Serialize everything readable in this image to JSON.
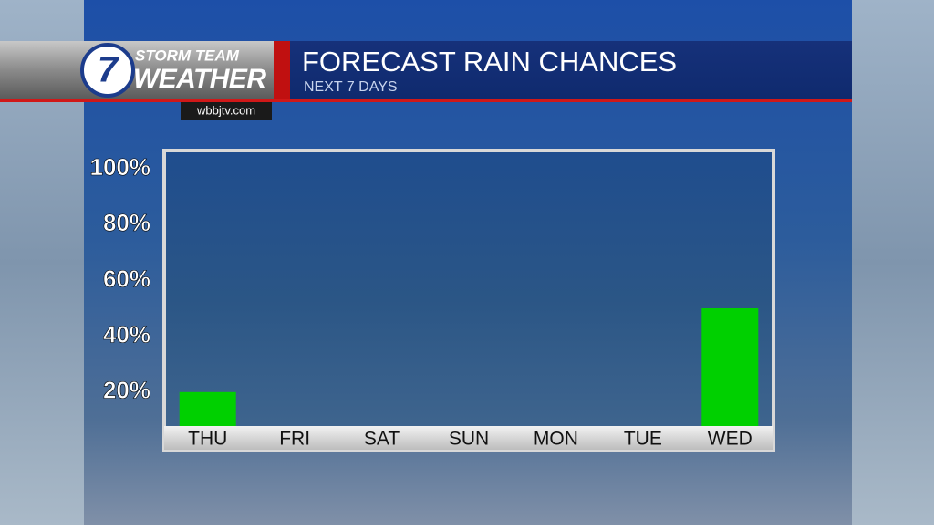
{
  "branding": {
    "logo_number": "7",
    "line1": "STORM TEAM",
    "line2": "WEATHER",
    "website": "wbbjtv.com"
  },
  "chart_data": {
    "type": "bar",
    "title": "FORECAST RAIN CHANCES",
    "subtitle": "NEXT 7 DAYS",
    "categories": [
      "THU",
      "FRI",
      "SAT",
      "SUN",
      "MON",
      "TUE",
      "WED"
    ],
    "values": [
      20,
      0,
      0,
      0,
      0,
      0,
      50
    ],
    "color": "#00d000",
    "ylim": [
      0,
      100
    ],
    "yticks": [
      {
        "value": 20,
        "label": "20%"
      },
      {
        "value": 40,
        "label": "40%"
      },
      {
        "value": 60,
        "label": "60%"
      },
      {
        "value": 80,
        "label": "80%"
      },
      {
        "value": 100,
        "label": "100%"
      }
    ]
  }
}
